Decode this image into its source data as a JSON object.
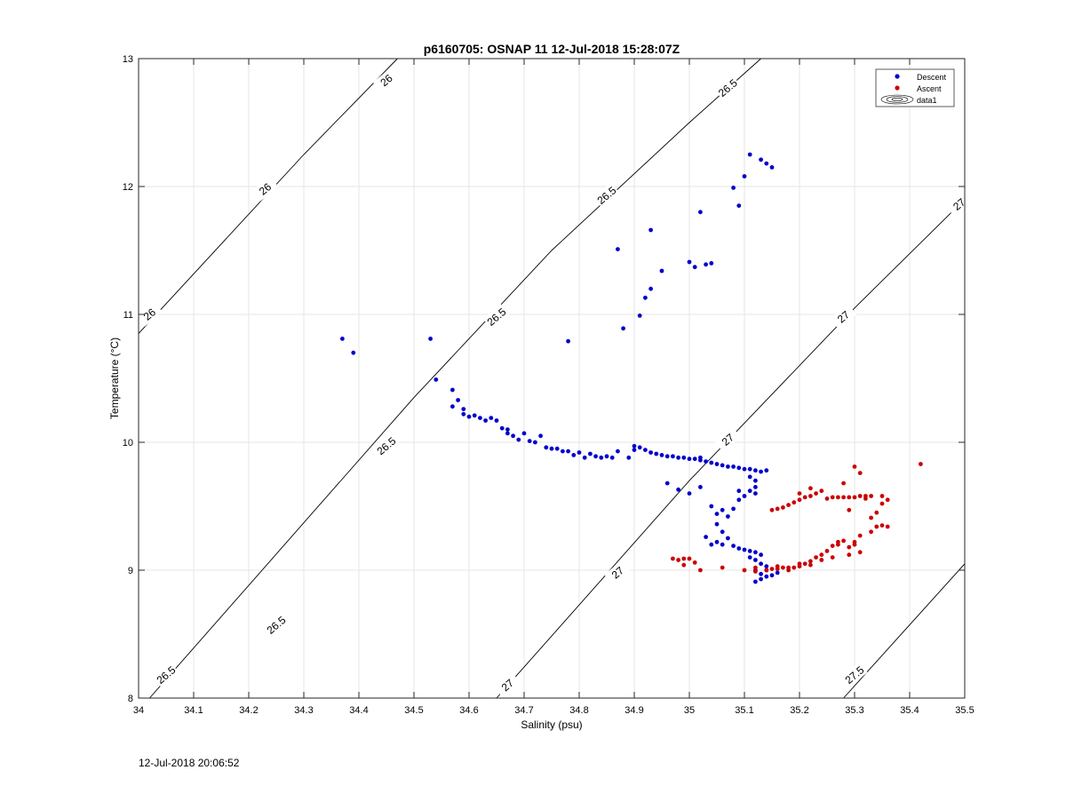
{
  "chart_data": {
    "type": "scatter",
    "title": "p6160705: OSNAP 11 12-Jul-2018 15:28:07Z",
    "xlabel": "Salinity (psu)",
    "ylabel": "Temperature (°C)",
    "xlim": [
      34,
      35.5
    ],
    "ylim": [
      8,
      13
    ],
    "grid": true,
    "legend_position": "top-right",
    "x_ticks": [
      "34",
      "34.1",
      "34.2",
      "34.3",
      "34.4",
      "34.5",
      "34.6",
      "34.7",
      "34.8",
      "34.9",
      "35",
      "35.1",
      "35.2",
      "35.3",
      "35.4",
      "35.5"
    ],
    "y_ticks": [
      "8",
      "9",
      "10",
      "11",
      "12",
      "13"
    ],
    "contour_levels": [
      26,
      26.5,
      27,
      27.5
    ],
    "contour_labels": [
      {
        "text": "26",
        "x": 34.02,
        "y": 11.0
      },
      {
        "text": "26",
        "x": 34.23,
        "y": 11.98
      },
      {
        "text": "26",
        "x": 34.45,
        "y": 12.83
      },
      {
        "text": "26.5",
        "x": 34.05,
        "y": 8.18
      },
      {
        "text": "26.5",
        "x": 34.25,
        "y": 8.57
      },
      {
        "text": "26.5",
        "x": 34.45,
        "y": 9.97
      },
      {
        "text": "26.5",
        "x": 34.65,
        "y": 10.98
      },
      {
        "text": "26.5",
        "x": 34.85,
        "y": 11.93
      },
      {
        "text": "26.5",
        "x": 35.07,
        "y": 12.77
      },
      {
        "text": "27",
        "x": 34.67,
        "y": 8.1
      },
      {
        "text": "27",
        "x": 34.87,
        "y": 8.98
      },
      {
        "text": "27",
        "x": 35.07,
        "y": 10.02
      },
      {
        "text": "27",
        "x": 35.28,
        "y": 10.98
      },
      {
        "text": "27",
        "x": 35.49,
        "y": 11.86
      },
      {
        "text": "27.5",
        "x": 35.3,
        "y": 8.18
      }
    ],
    "series": [
      {
        "name": "Descent",
        "color": "#0000cc",
        "points": [
          [
            34.37,
            10.81
          ],
          [
            34.39,
            10.7
          ],
          [
            34.53,
            10.81
          ],
          [
            34.54,
            10.49
          ],
          [
            34.57,
            10.41
          ],
          [
            34.57,
            10.28
          ],
          [
            34.58,
            10.33
          ],
          [
            34.59,
            10.26
          ],
          [
            34.59,
            10.22
          ],
          [
            34.6,
            10.2
          ],
          [
            34.61,
            10.21
          ],
          [
            34.62,
            10.19
          ],
          [
            34.63,
            10.17
          ],
          [
            34.64,
            10.19
          ],
          [
            34.65,
            10.17
          ],
          [
            34.66,
            10.11
          ],
          [
            34.67,
            10.1
          ],
          [
            34.67,
            10.07
          ],
          [
            34.68,
            10.05
          ],
          [
            34.69,
            10.02
          ],
          [
            34.7,
            10.07
          ],
          [
            34.71,
            10.01
          ],
          [
            34.72,
            10.0
          ],
          [
            34.73,
            10.05
          ],
          [
            34.74,
            9.96
          ],
          [
            34.75,
            9.95
          ],
          [
            34.76,
            9.95
          ],
          [
            34.77,
            9.93
          ],
          [
            34.78,
            9.93
          ],
          [
            34.79,
            9.9
          ],
          [
            34.8,
            9.92
          ],
          [
            34.81,
            9.88
          ],
          [
            34.82,
            9.91
          ],
          [
            34.83,
            9.89
          ],
          [
            34.84,
            9.88
          ],
          [
            34.85,
            9.89
          ],
          [
            34.86,
            9.88
          ],
          [
            34.87,
            9.93
          ],
          [
            34.89,
            9.88
          ],
          [
            34.9,
            9.94
          ],
          [
            34.78,
            10.79
          ],
          [
            34.87,
            11.51
          ],
          [
            34.88,
            10.89
          ],
          [
            34.91,
            10.99
          ],
          [
            34.92,
            11.13
          ],
          [
            34.93,
            11.2
          ],
          [
            34.93,
            11.66
          ],
          [
            34.95,
            11.34
          ],
          [
            35.0,
            11.41
          ],
          [
            35.01,
            11.37
          ],
          [
            35.02,
            11.8
          ],
          [
            35.03,
            11.39
          ],
          [
            35.04,
            11.4
          ],
          [
            35.08,
            11.99
          ],
          [
            35.09,
            11.85
          ],
          [
            35.1,
            12.08
          ],
          [
            35.11,
            12.25
          ],
          [
            35.13,
            12.21
          ],
          [
            35.14,
            12.18
          ],
          [
            35.15,
            12.15
          ],
          [
            34.9,
            9.97
          ],
          [
            34.91,
            9.96
          ],
          [
            34.92,
            9.94
          ],
          [
            34.93,
            9.92
          ],
          [
            34.94,
            9.91
          ],
          [
            34.95,
            9.9
          ],
          [
            34.96,
            9.89
          ],
          [
            34.97,
            9.89
          ],
          [
            34.98,
            9.88
          ],
          [
            34.99,
            9.88
          ],
          [
            35.0,
            9.87
          ],
          [
            35.01,
            9.87
          ],
          [
            35.02,
            9.86
          ],
          [
            35.03,
            9.85
          ],
          [
            35.04,
            9.84
          ],
          [
            35.05,
            9.83
          ],
          [
            35.06,
            9.82
          ],
          [
            35.07,
            9.81
          ],
          [
            35.08,
            9.81
          ],
          [
            35.09,
            9.8
          ],
          [
            35.1,
            9.79
          ],
          [
            35.11,
            9.79
          ],
          [
            35.12,
            9.78
          ],
          [
            35.13,
            9.77
          ],
          [
            35.12,
            9.7
          ],
          [
            35.12,
            9.65
          ],
          [
            35.11,
            9.62
          ],
          [
            35.1,
            9.58
          ],
          [
            35.09,
            9.55
          ],
          [
            35.08,
            9.48
          ],
          [
            34.96,
            9.68
          ],
          [
            34.98,
            9.63
          ],
          [
            35.0,
            9.6
          ],
          [
            35.02,
            9.65
          ],
          [
            35.04,
            9.5
          ],
          [
            35.05,
            9.44
          ],
          [
            35.06,
            9.47
          ],
          [
            35.07,
            9.42
          ],
          [
            35.05,
            9.36
          ],
          [
            35.06,
            9.3
          ],
          [
            35.07,
            9.25
          ],
          [
            35.05,
            9.22
          ],
          [
            35.06,
            9.2
          ],
          [
            35.08,
            9.19
          ],
          [
            35.09,
            9.17
          ],
          [
            35.1,
            9.16
          ],
          [
            35.11,
            9.15
          ],
          [
            35.12,
            9.14
          ],
          [
            35.13,
            9.12
          ],
          [
            35.12,
            9.08
          ],
          [
            35.13,
            9.05
          ],
          [
            35.14,
            9.03
          ],
          [
            35.12,
            9.0
          ],
          [
            35.13,
            8.97
          ],
          [
            35.14,
            8.95
          ],
          [
            35.15,
            8.96
          ],
          [
            35.13,
            8.93
          ],
          [
            35.12,
            8.91
          ],
          [
            35.03,
            9.26
          ],
          [
            35.04,
            9.2
          ],
          [
            35.02,
            9.88
          ],
          [
            35.14,
            9.78
          ],
          [
            35.11,
            9.73
          ],
          [
            35.12,
            9.6
          ],
          [
            35.09,
            9.62
          ],
          [
            35.11,
            9.1
          ],
          [
            35.14,
            9.0
          ],
          [
            35.16,
            8.98
          ]
        ]
      },
      {
        "name": "Ascent",
        "color": "#cc0000",
        "points": [
          [
            34.97,
            9.09
          ],
          [
            34.98,
            9.08
          ],
          [
            34.99,
            9.09
          ],
          [
            35.0,
            9.09
          ],
          [
            34.99,
            9.04
          ],
          [
            35.01,
            9.06
          ],
          [
            35.02,
            9.0
          ],
          [
            35.06,
            9.02
          ],
          [
            35.1,
            9.0
          ],
          [
            35.12,
            8.99
          ],
          [
            35.14,
            9.0
          ],
          [
            35.15,
            9.01
          ],
          [
            35.16,
            9.01
          ],
          [
            35.17,
            9.02
          ],
          [
            35.18,
            9.02
          ],
          [
            35.19,
            9.02
          ],
          [
            35.2,
            9.03
          ],
          [
            35.21,
            9.05
          ],
          [
            35.22,
            9.07
          ],
          [
            35.23,
            9.1
          ],
          [
            35.24,
            9.12
          ],
          [
            35.25,
            9.15
          ],
          [
            35.26,
            9.19
          ],
          [
            35.27,
            9.22
          ],
          [
            35.28,
            9.23
          ],
          [
            35.27,
            9.2
          ],
          [
            35.29,
            9.18
          ],
          [
            35.3,
            9.22
          ],
          [
            35.31,
            9.27
          ],
          [
            35.33,
            9.3
          ],
          [
            35.34,
            9.34
          ],
          [
            35.35,
            9.35
          ],
          [
            35.36,
            9.34
          ],
          [
            35.33,
            9.41
          ],
          [
            35.34,
            9.45
          ],
          [
            35.35,
            9.52
          ],
          [
            35.36,
            9.55
          ],
          [
            35.35,
            9.58
          ],
          [
            35.33,
            9.58
          ],
          [
            35.32,
            9.58
          ],
          [
            35.31,
            9.58
          ],
          [
            35.3,
            9.57
          ],
          [
            35.29,
            9.57
          ],
          [
            35.28,
            9.57
          ],
          [
            35.27,
            9.57
          ],
          [
            35.26,
            9.57
          ],
          [
            35.25,
            9.56
          ],
          [
            35.24,
            9.62
          ],
          [
            35.23,
            9.6
          ],
          [
            35.22,
            9.58
          ],
          [
            35.21,
            9.57
          ],
          [
            35.2,
            9.55
          ],
          [
            35.19,
            9.53
          ],
          [
            35.18,
            9.51
          ],
          [
            35.17,
            9.49
          ],
          [
            35.16,
            9.48
          ],
          [
            35.15,
            9.47
          ],
          [
            35.3,
            9.81
          ],
          [
            35.31,
            9.76
          ],
          [
            35.42,
            9.83
          ],
          [
            35.28,
            9.68
          ],
          [
            35.32,
            9.56
          ],
          [
            35.2,
            9.6
          ],
          [
            35.22,
            9.64
          ],
          [
            35.29,
            9.47
          ],
          [
            35.3,
            9.2
          ],
          [
            35.31,
            9.14
          ],
          [
            35.29,
            9.12
          ],
          [
            35.26,
            9.1
          ],
          [
            35.24,
            9.08
          ],
          [
            35.22,
            9.04
          ],
          [
            35.18,
            9.0
          ],
          [
            35.2,
            9.05
          ],
          [
            35.16,
            9.03
          ],
          [
            35.12,
            9.02
          ]
        ]
      },
      {
        "name": "data1",
        "color": "#000000",
        "points": []
      }
    ],
    "bottom_timestamp": "12-Jul-2018 20:06:52"
  }
}
